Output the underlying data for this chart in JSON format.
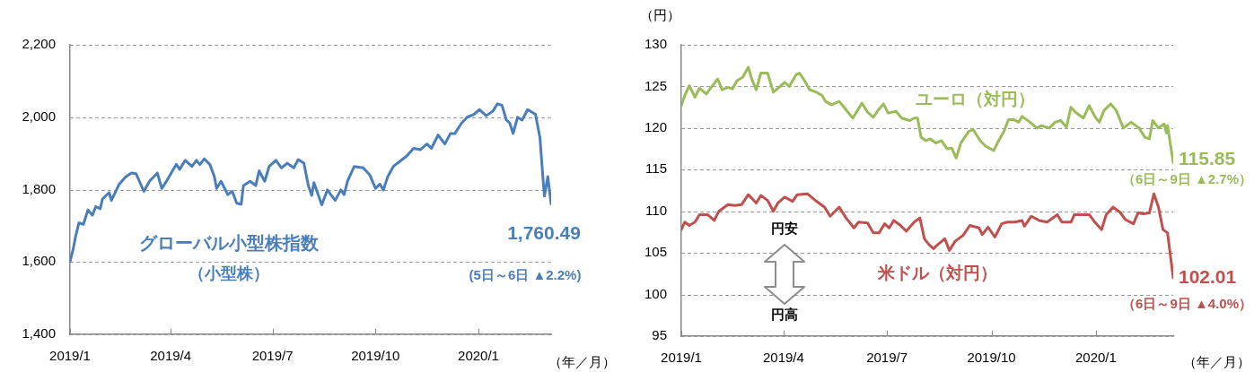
{
  "chart_data": [
    {
      "type": "line",
      "xlabel": "（年／月）",
      "grid": "y",
      "legend": false,
      "xlim": [
        "2019-01-01",
        "2020-03-06"
      ],
      "xticks": [
        {
          "value": "2019-01-01",
          "label": "2019/1"
        },
        {
          "value": "2019-04-01",
          "label": "2019/4"
        },
        {
          "value": "2019-07-01",
          "label": "2019/7"
        },
        {
          "value": "2019-10-01",
          "label": "2019/10"
        },
        {
          "value": "2020-01-01",
          "label": "2020/1"
        }
      ],
      "ylim": [
        1400,
        2200
      ],
      "yticks": [
        {
          "value": 1400,
          "label": "1,400"
        },
        {
          "value": 1600,
          "label": "1,600"
        },
        {
          "value": 1800,
          "label": "1,800"
        },
        {
          "value": 2000,
          "label": "2,000"
        },
        {
          "value": 2200,
          "label": "2,200"
        }
      ],
      "annotations": [
        "（小型株）",
        "(5日～6日 ▲2.2%)",
        {
          "text": "1,760.49",
          "x": "2020-03-06",
          "y": 1760.49
        }
      ],
      "series": [
        {
          "name": "グローバル小型株指数",
          "color": "#4a7ebb",
          "x": [
            "2019-01-01",
            "2019-01-04",
            "2019-01-06",
            "2019-01-09",
            "2019-01-13",
            "2019-01-17",
            "2019-01-21",
            "2019-01-24",
            "2019-01-28",
            "2019-01-30",
            "2019-02-05",
            "2019-02-07",
            "2019-02-14",
            "2019-02-20",
            "2019-02-25",
            "2019-03-01",
            "2019-03-08",
            "2019-03-13",
            "2019-03-20",
            "2019-03-24",
            "2019-03-29",
            "2019-04-06",
            "2019-04-09",
            "2019-04-14",
            "2019-04-20",
            "2019-04-24",
            "2019-04-27",
            "2019-05-01",
            "2019-05-06",
            "2019-05-10",
            "2019-05-12",
            "2019-05-16",
            "2019-05-22",
            "2019-05-26",
            "2019-05-30",
            "2019-06-03",
            "2019-06-05",
            "2019-06-11",
            "2019-06-16",
            "2019-06-19",
            "2019-06-24",
            "2019-06-28",
            "2019-07-04",
            "2019-07-09",
            "2019-07-14",
            "2019-07-20",
            "2019-07-24",
            "2019-07-29",
            "2019-08-02",
            "2019-08-05",
            "2019-08-07",
            "2019-08-14",
            "2019-08-19",
            "2019-08-26",
            "2019-08-31",
            "2019-09-03",
            "2019-09-06",
            "2019-09-12",
            "2019-09-20",
            "2019-09-26",
            "2019-10-01",
            "2019-10-05",
            "2019-10-08",
            "2019-10-12",
            "2019-10-17",
            "2019-10-24",
            "2019-10-29",
            "2019-11-04",
            "2019-11-10",
            "2019-11-16",
            "2019-11-20",
            "2019-11-26",
            "2019-12-02",
            "2019-12-07",
            "2019-12-11",
            "2019-12-17",
            "2019-12-22",
            "2019-12-28",
            "2020-01-02",
            "2020-01-08",
            "2020-01-14",
            "2020-01-18",
            "2020-01-22",
            "2020-01-26",
            "2020-01-29",
            "2020-02-01",
            "2020-02-05",
            "2020-02-09",
            "2020-02-14",
            "2020-02-21",
            "2020-02-25",
            "2020-02-28",
            "2020-02-29",
            "2020-03-03",
            "2020-03-06"
          ],
          "values": [
            1601,
            1638,
            1671,
            1708,
            1704,
            1744,
            1729,
            1753,
            1747,
            1774,
            1792,
            1770,
            1815,
            1836,
            1846,
            1844,
            1795,
            1823,
            1846,
            1803,
            1827,
            1870,
            1856,
            1881,
            1864,
            1881,
            1869,
            1885,
            1869,
            1836,
            1803,
            1823,
            1786,
            1795,
            1762,
            1760,
            1811,
            1823,
            1811,
            1852,
            1823,
            1864,
            1881,
            1860,
            1873,
            1860,
            1883,
            1873,
            1811,
            1784,
            1819,
            1758,
            1799,
            1770,
            1799,
            1786,
            1823,
            1864,
            1860,
            1840,
            1803,
            1815,
            1799,
            1836,
            1864,
            1881,
            1893,
            1914,
            1910,
            1926,
            1914,
            1951,
            1926,
            1955,
            1955,
            1984,
            2000,
            2008,
            2021,
            2004,
            2017,
            2037,
            2033,
            1992,
            1984,
            1955,
            2000,
            1992,
            2021,
            2008,
            1943,
            1819,
            1782,
            1836,
            1760.49
          ]
        }
      ]
    },
    {
      "type": "line",
      "ylabel": "（円）",
      "xlabel": "（年／月）",
      "grid": "y",
      "legend": false,
      "xlim": [
        "2019-01-01",
        "2020-03-09"
      ],
      "xticks": [
        {
          "value": "2019-01-01",
          "label": "2019/1"
        },
        {
          "value": "2019-04-01",
          "label": "2019/4"
        },
        {
          "value": "2019-07-01",
          "label": "2019/7"
        },
        {
          "value": "2019-10-01",
          "label": "2019/10"
        },
        {
          "value": "2020-01-01",
          "label": "2020/1"
        }
      ],
      "ylim": [
        95,
        130
      ],
      "yticks": [
        95,
        100,
        105,
        110,
        115,
        120,
        125,
        130
      ],
      "annotations": [
        {
          "text": "115.85",
          "x": "2020-03-09",
          "y": 115.85
        },
        "（6日～9日 ▲2.7%）",
        {
          "text": "102.01",
          "x": "2020-03-09",
          "y": 102.01
        },
        "（6日～9日 ▲4.0%）",
        "円安",
        "円高"
      ],
      "series": [
        {
          "name": "ユーロ（対円）",
          "color": "#9bbb59",
          "x": [
            "2019-01-01",
            "2019-01-04",
            "2019-01-08",
            "2019-01-13",
            "2019-01-17",
            "2019-01-23",
            "2019-01-28",
            "2019-02-02",
            "2019-02-06",
            "2019-02-11",
            "2019-02-15",
            "2019-02-19",
            "2019-02-24",
            "2019-03-01",
            "2019-03-04",
            "2019-03-08",
            "2019-03-12",
            "2019-03-18",
            "2019-03-23",
            "2019-03-29",
            "2019-04-02",
            "2019-04-06",
            "2019-04-12",
            "2019-04-15",
            "2019-04-19",
            "2019-04-24",
            "2019-04-30",
            "2019-05-05",
            "2019-05-08",
            "2019-05-13",
            "2019-05-20",
            "2019-05-26",
            "2019-06-01",
            "2019-06-05",
            "2019-06-09",
            "2019-06-14",
            "2019-06-19",
            "2019-06-23",
            "2019-06-28",
            "2019-07-02",
            "2019-07-09",
            "2019-07-14",
            "2019-07-21",
            "2019-07-25",
            "2019-07-28",
            "2019-07-31",
            "2019-08-04",
            "2019-08-08",
            "2019-08-13",
            "2019-08-18",
            "2019-08-23",
            "2019-08-27",
            "2019-08-31",
            "2019-09-04",
            "2019-09-11",
            "2019-09-15",
            "2019-09-21",
            "2019-09-26",
            "2019-10-03",
            "2019-10-07",
            "2019-10-12",
            "2019-10-16",
            "2019-10-21",
            "2019-10-25",
            "2019-10-28",
            "2019-11-04",
            "2019-11-10",
            "2019-11-14",
            "2019-11-21",
            "2019-11-26",
            "2019-12-01",
            "2019-12-06",
            "2019-12-10",
            "2019-12-14",
            "2019-12-21",
            "2019-12-26",
            "2019-12-31",
            "2020-01-04",
            "2020-01-08",
            "2020-01-14",
            "2020-01-19",
            "2020-01-25",
            "2020-02-01",
            "2020-02-08",
            "2020-02-13",
            "2020-02-17",
            "2020-02-20",
            "2020-02-25",
            "2020-03-01",
            "2020-03-03",
            "2020-03-04",
            "2020-03-09"
          ],
          "values": [
            122.7,
            123.9,
            125.1,
            123.7,
            124.8,
            124.1,
            125.0,
            125.9,
            124.6,
            124.9,
            124.7,
            125.7,
            126.1,
            127.3,
            125.9,
            124.6,
            126.6,
            126.6,
            124.3,
            125.0,
            125.5,
            125.0,
            126.4,
            126.6,
            125.8,
            124.6,
            124.3,
            123.9,
            123.2,
            122.8,
            123.2,
            122.2,
            121.2,
            122.1,
            123.0,
            121.9,
            121.3,
            122.1,
            122.9,
            121.8,
            122.0,
            121.2,
            120.9,
            121.2,
            121.2,
            118.9,
            118.5,
            118.7,
            118.2,
            118.5,
            117.5,
            117.6,
            116.4,
            118.2,
            119.6,
            119.8,
            118.5,
            117.8,
            117.3,
            118.4,
            119.6,
            121.0,
            121.0,
            120.7,
            121.4,
            120.7,
            120.0,
            120.3,
            120.0,
            120.7,
            120.9,
            120.1,
            122.5,
            121.9,
            121.2,
            122.7,
            121.4,
            120.7,
            122.1,
            122.9,
            122.1,
            120.0,
            120.7,
            120.0,
            118.9,
            118.7,
            120.9,
            120.0,
            120.5,
            119.4,
            120.3,
            115.85
          ]
        },
        {
          "name": "米ドル（対円）",
          "color": "#c0504d",
          "x": [
            "2019-01-01",
            "2019-01-04",
            "2019-01-08",
            "2019-01-13",
            "2019-01-17",
            "2019-01-24",
            "2019-01-30",
            "2019-02-03",
            "2019-02-11",
            "2019-02-17",
            "2019-02-23",
            "2019-03-01",
            "2019-03-08",
            "2019-03-12",
            "2019-03-18",
            "2019-03-23",
            "2019-03-27",
            "2019-04-02",
            "2019-04-09",
            "2019-04-13",
            "2019-04-22",
            "2019-04-30",
            "2019-05-07",
            "2019-05-12",
            "2019-05-20",
            "2019-05-26",
            "2019-06-02",
            "2019-06-06",
            "2019-06-14",
            "2019-06-19",
            "2019-06-24",
            "2019-06-29",
            "2019-07-03",
            "2019-07-07",
            "2019-07-13",
            "2019-07-18",
            "2019-07-25",
            "2019-07-30",
            "2019-08-03",
            "2019-08-07",
            "2019-08-11",
            "2019-08-13",
            "2019-08-21",
            "2019-08-25",
            "2019-08-30",
            "2019-09-06",
            "2019-09-12",
            "2019-09-20",
            "2019-09-23",
            "2019-09-28",
            "2019-10-04",
            "2019-10-10",
            "2019-10-15",
            "2019-10-22",
            "2019-10-28",
            "2019-10-30",
            "2019-11-05",
            "2019-11-12",
            "2019-11-19",
            "2019-11-28",
            "2019-12-02",
            "2019-12-10",
            "2019-12-13",
            "2019-12-21",
            "2019-12-26",
            "2019-12-31",
            "2020-01-06",
            "2020-01-10",
            "2020-01-16",
            "2020-01-22",
            "2020-01-27",
            "2020-02-03",
            "2020-02-07",
            "2020-02-12",
            "2020-02-17",
            "2020-02-21",
            "2020-02-25",
            "2020-02-29",
            "2020-03-04",
            "2020-03-09"
          ],
          "values": [
            107.8,
            108.7,
            108.3,
            108.7,
            109.6,
            109.6,
            108.9,
            110.0,
            110.8,
            110.7,
            110.8,
            112.0,
            111.0,
            111.9,
            111.3,
            110.0,
            111.0,
            111.7,
            111.2,
            112.0,
            112.1,
            111.2,
            110.5,
            109.4,
            110.5,
            109.2,
            108.0,
            108.7,
            108.6,
            107.4,
            107.4,
            108.5,
            108.0,
            108.9,
            108.3,
            107.6,
            108.7,
            109.2,
            106.7,
            106.0,
            105.5,
            105.8,
            106.7,
            105.3,
            106.4,
            107.1,
            108.3,
            108.0,
            107.2,
            108.1,
            106.9,
            108.5,
            108.7,
            108.7,
            108.9,
            108.2,
            109.4,
            108.9,
            108.7,
            109.6,
            108.7,
            108.7,
            109.6,
            109.6,
            109.6,
            108.7,
            107.8,
            109.6,
            110.5,
            109.9,
            109.0,
            108.5,
            109.8,
            109.7,
            109.8,
            112.1,
            110.5,
            107.8,
            107.4,
            102.01
          ]
        }
      ]
    }
  ]
}
